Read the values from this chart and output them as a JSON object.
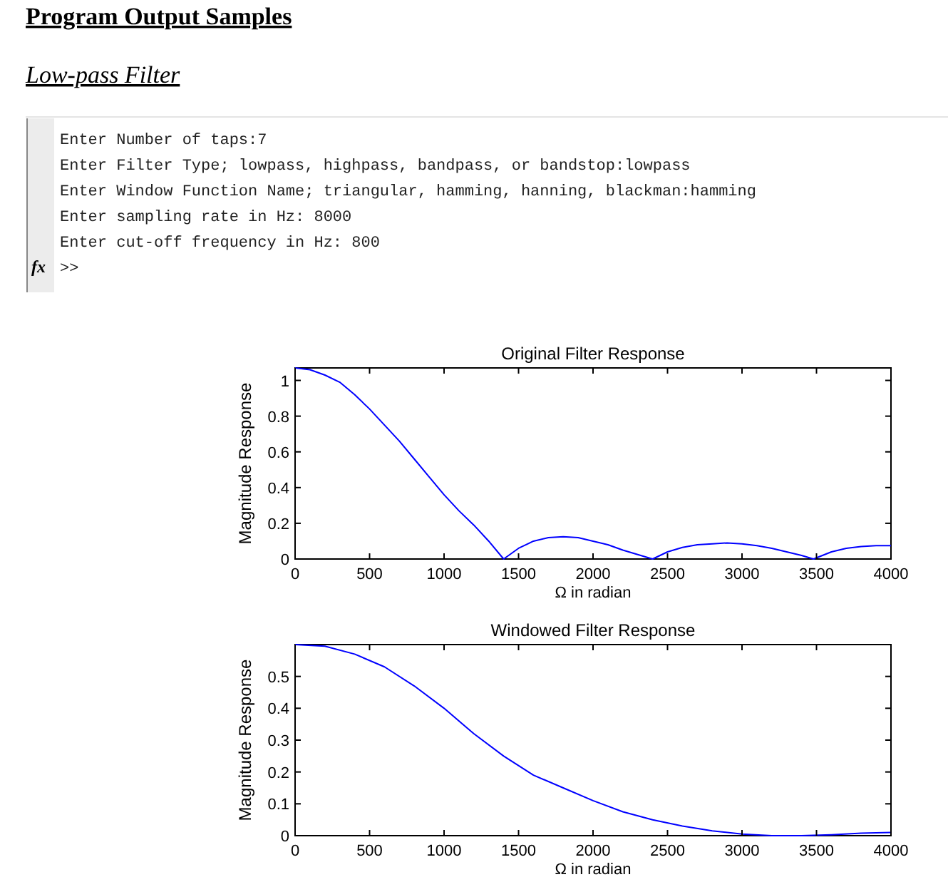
{
  "chart_data": [
    {
      "type": "other",
      "title": "Program Output Samples",
      "subtitle": "Low-pass Filter",
      "annotations": [
        "Enter Number of taps:7",
        "Enter Filter Type; lowpass, highpass, bandpass, or bandstop:lowpass",
        "Enter Window Function Name; triangular, hamming, hanning, blackman:hamming",
        "Enter sampling rate in Hz: 8000",
        "Enter cut-off frequency in Hz: 800",
        "fx",
        ">>"
      ]
    },
    {
      "type": "line",
      "title": "Original Filter Response",
      "xlabel": "Ω in radian",
      "ylabel": "Magnitude Response",
      "xlim": [
        0,
        4000
      ],
      "xticks": [
        0,
        500,
        1000,
        1500,
        2000,
        2500,
        3000,
        3500,
        4000
      ],
      "ylim": [
        0,
        1.07
      ],
      "yticks": [
        0,
        0.2,
        0.4,
        0.6,
        0.8,
        1
      ],
      "grid": false,
      "line_style": "solid",
      "series": [
        {
          "color": "#0000ff",
          "x": [
            0,
            100,
            200,
            300,
            400,
            500,
            600,
            700,
            800,
            900,
            1000,
            1100,
            1200,
            1300,
            1400,
            1500,
            1600,
            1700,
            1800,
            1900,
            2000,
            2100,
            2200,
            2300,
            2400,
            2500,
            2600,
            2700,
            2800,
            2900,
            3000,
            3100,
            3200,
            3300,
            3400,
            3480,
            3600,
            3700,
            3800,
            3900,
            4000
          ],
          "values": [
            1.07,
            1.06,
            1.03,
            0.99,
            0.92,
            0.84,
            0.75,
            0.66,
            0.56,
            0.46,
            0.36,
            0.27,
            0.19,
            0.1,
            0,
            0.06,
            0.1,
            0.12,
            0.125,
            0.12,
            0.1,
            0.08,
            0.05,
            0.025,
            0,
            0.04,
            0.065,
            0.08,
            0.085,
            0.09,
            0.085,
            0.075,
            0.06,
            0.04,
            0.02,
            0,
            0.04,
            0.06,
            0.07,
            0.075,
            0.075
          ]
        }
      ]
    },
    {
      "type": "line",
      "title": "Windowed Filter Response",
      "xlabel": "Ω in radian",
      "ylabel": "Magnitude Response",
      "xlim": [
        0,
        4000
      ],
      "xticks": [
        0,
        500,
        1000,
        1500,
        2000,
        2500,
        3000,
        3500,
        4000
      ],
      "ylim": [
        0,
        0.6
      ],
      "yticks": [
        0,
        0.1,
        0.2,
        0.3,
        0.4,
        0.5
      ],
      "grid": false,
      "line_style": "solid",
      "series": [
        {
          "color": "#0000ff",
          "x": [
            0,
            200,
            400,
            600,
            800,
            1000,
            1200,
            1400,
            1600,
            1800,
            2000,
            2200,
            2400,
            2600,
            2800,
            3000,
            3200,
            3400,
            3600,
            3800,
            4000
          ],
          "values": [
            0.6,
            0.595,
            0.57,
            0.53,
            0.47,
            0.4,
            0.32,
            0.25,
            0.19,
            0.15,
            0.11,
            0.075,
            0.05,
            0.03,
            0.015,
            0.005,
            0,
            0,
            0.003,
            0.008,
            0.01
          ]
        }
      ]
    }
  ]
}
